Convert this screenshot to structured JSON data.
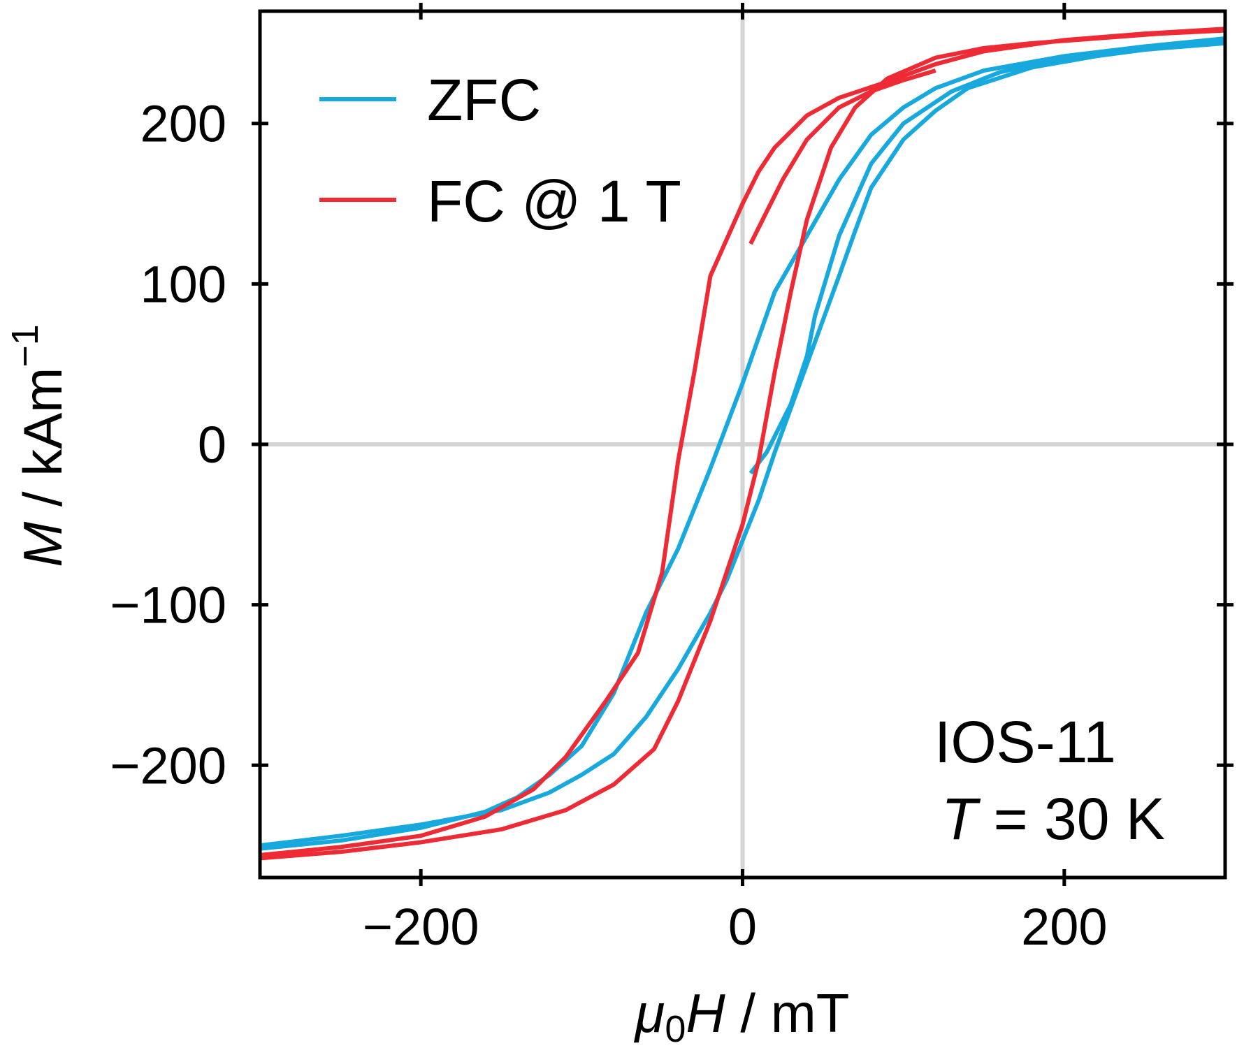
{
  "chart_data": {
    "type": "line",
    "xlabel": "μ0H / mT",
    "xlabel_parts": {
      "symbol": "μ",
      "subscript": "0",
      "variable": "H",
      "unit": "mT"
    },
    "ylabel": "M / kAm−1",
    "ylabel_parts": {
      "variable": "M",
      "unit": "kAm",
      "superscript": "−1"
    },
    "xlim": [
      -300,
      300
    ],
    "ylim": [
      -270,
      270
    ],
    "xticks": [
      -200,
      0,
      200
    ],
    "xtick_labels": [
      "−200",
      "0",
      "200"
    ],
    "yticks": [
      -200,
      -100,
      0,
      100,
      200
    ],
    "ytick_labels": [
      "−200",
      "−100",
      "0",
      "100",
      "200"
    ],
    "zero_lines": true,
    "grid": false,
    "legend_position": "top-left",
    "annotation": {
      "line1": "IOS-11",
      "line2_variable": "T",
      "line2_rest": " = 30 K"
    },
    "colors": {
      "ZFC": "#17a9dd",
      "FC @ 1 T": "#ee2a35",
      "zero_lines": "#d4d4d4",
      "frame": "#000000"
    },
    "series": [
      {
        "name": "ZFC",
        "color": "#17a9dd",
        "curves": [
          {
            "label": "virgin",
            "points": [
              [
                5,
                -18
              ],
              [
                15,
                -5
              ],
              [
                20,
                5
              ],
              [
                30,
                25
              ],
              [
                40,
                55
              ],
              [
                45,
                80
              ],
              [
                60,
                130
              ],
              [
                80,
                175
              ],
              [
                100,
                200
              ],
              [
                130,
                220
              ],
              [
                160,
                232
              ],
              [
                200,
                241
              ],
              [
                250,
                247
              ],
              [
                300,
                252
              ]
            ]
          },
          {
            "label": "descending",
            "points": [
              [
                300,
                250
              ],
              [
                250,
                246
              ],
              [
                220,
                242
              ],
              [
                180,
                235
              ],
              [
                140,
                222
              ],
              [
                120,
                208
              ],
              [
                100,
                190
              ],
              [
                80,
                160
              ],
              [
                70,
                133
              ],
              [
                60,
                105
              ],
              [
                40,
                50
              ],
              [
                20,
                -5
              ],
              [
                10,
                -35
              ],
              [
                0,
                -60
              ],
              [
                -10,
                -85
              ],
              [
                -20,
                -105
              ],
              [
                -40,
                -140
              ],
              [
                -60,
                -170
              ],
              [
                -80,
                -193
              ],
              [
                -100,
                -206
              ],
              [
                -120,
                -217
              ],
              [
                -150,
                -228
              ],
              [
                -200,
                -237
              ],
              [
                -250,
                -244
              ],
              [
                -300,
                -250
              ]
            ]
          },
          {
            "label": "ascending",
            "points": [
              [
                -300,
                -252
              ],
              [
                -250,
                -247
              ],
              [
                -200,
                -239
              ],
              [
                -160,
                -229
              ],
              [
                -140,
                -220
              ],
              [
                -120,
                -206
              ],
              [
                -100,
                -188
              ],
              [
                -80,
                -155
              ],
              [
                -60,
                -105
              ],
              [
                -40,
                -65
              ],
              [
                -20,
                -15
              ],
              [
                0,
                38
              ],
              [
                20,
                95
              ],
              [
                40,
                130
              ],
              [
                60,
                165
              ],
              [
                80,
                193
              ],
              [
                100,
                210
              ],
              [
                120,
                222
              ],
              [
                150,
                233
              ],
              [
                200,
                242
              ],
              [
                250,
                248
              ],
              [
                300,
                253
              ]
            ]
          }
        ]
      },
      {
        "name": "FC @ 1 T",
        "color": "#ee2a35",
        "curves": [
          {
            "label": "descending",
            "points": [
              [
                300,
                258
              ],
              [
                260,
                256
              ],
              [
                220,
                253
              ],
              [
                180,
                250
              ],
              [
                150,
                247
              ],
              [
                120,
                241
              ],
              [
                90,
                228
              ],
              [
                70,
                210
              ],
              [
                55,
                185
              ],
              [
                40,
                140
              ],
              [
                30,
                95
              ],
              [
                20,
                45
              ],
              [
                10,
                -10
              ],
              [
                0,
                -50
              ],
              [
                -10,
                -80
              ],
              [
                -20,
                -110
              ],
              [
                -40,
                -160
              ],
              [
                -55,
                -190
              ],
              [
                -80,
                -212
              ],
              [
                -110,
                -228
              ],
              [
                -150,
                -240
              ],
              [
                -200,
                -248
              ],
              [
                -250,
                -254
              ],
              [
                -300,
                -258
              ]
            ]
          },
          {
            "label": "ascending",
            "points": [
              [
                -300,
                -256
              ],
              [
                -250,
                -251
              ],
              [
                -200,
                -244
              ],
              [
                -160,
                -232
              ],
              [
                -130,
                -215
              ],
              [
                -110,
                -195
              ],
              [
                -85,
                -160
              ],
              [
                -65,
                -130
              ],
              [
                -50,
                -80
              ],
              [
                -40,
                -10
              ],
              [
                -30,
                45
              ],
              [
                -20,
                105
              ],
              [
                0,
                150
              ],
              [
                10,
                170
              ],
              [
                20,
                185
              ],
              [
                40,
                205
              ],
              [
                60,
                216
              ],
              [
                90,
                226
              ],
              [
                120,
                237
              ],
              [
                150,
                245
              ],
              [
                200,
                252
              ],
              [
                250,
                256
              ],
              [
                300,
                259
              ]
            ]
          },
          {
            "label": "branch",
            "points": [
              [
                5,
                125
              ],
              [
                15,
                145
              ],
              [
                25,
                165
              ],
              [
                40,
                190
              ],
              [
                60,
                210
              ],
              [
                80,
                220
              ],
              [
                100,
                227
              ],
              [
                120,
                233
              ]
            ]
          }
        ]
      }
    ]
  }
}
